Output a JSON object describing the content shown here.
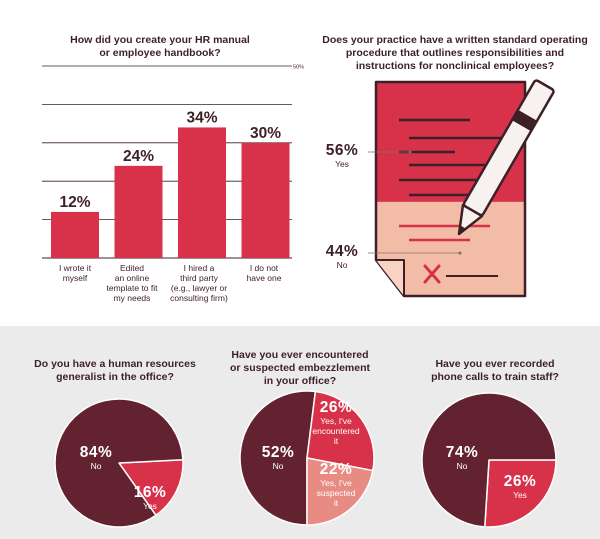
{
  "colors": {
    "red": "#d8324a",
    "maroon": "#62222f",
    "salmon": "#e88c83",
    "pale": "#f3bca6",
    "ink": "#3d1f27"
  },
  "chart_data": [
    {
      "type": "bar",
      "title": "How did you create your HR manual\nor employee handbook?",
      "categories": [
        "I wrote it\nmyself",
        "Edited\nan online\ntemplate to fit\nmy needs",
        "I hired a\nthird party\n(e.g., lawyer or\nconsulting firm)",
        "I do not\nhave one"
      ],
      "values": [
        12,
        24,
        34,
        30
      ],
      "value_labels": [
        "12%",
        "24%",
        "34%",
        "30%"
      ],
      "ylim": [
        0,
        50
      ],
      "ymax_label": "50%",
      "grid": true
    },
    {
      "type": "pie",
      "title": "Does your practice have a written standard operating\nprocedure that outlines responsibilities and\ninstructions for nonclinical employees?",
      "slices": [
        {
          "label": "Yes",
          "value": 56,
          "value_label": "56%"
        },
        {
          "label": "No",
          "value": 44,
          "value_label": "44%"
        }
      ]
    },
    {
      "type": "pie",
      "title": "Do you have a human resources\ngeneralist in the office?",
      "slices": [
        {
          "label": "No",
          "value": 84,
          "value_label": "84%"
        },
        {
          "label": "Yes",
          "value": 16,
          "value_label": "16%"
        }
      ]
    },
    {
      "type": "pie",
      "title": "Have you ever encountered\nor suspected embezzlement\nin your office?",
      "slices": [
        {
          "label": "No",
          "value": 52,
          "value_label": "52%"
        },
        {
          "label": "Yes, I've\nencountered\nit",
          "value": 26,
          "value_label": "26%"
        },
        {
          "label": "Yes, I've\nsuspected\nit",
          "value": 22,
          "value_label": "22%"
        }
      ]
    },
    {
      "type": "pie",
      "title": "Have you ever recorded\nphone calls to train staff?",
      "slices": [
        {
          "label": "No",
          "value": 74,
          "value_label": "74%"
        },
        {
          "label": "Yes",
          "value": 26,
          "value_label": "26%"
        }
      ]
    }
  ]
}
